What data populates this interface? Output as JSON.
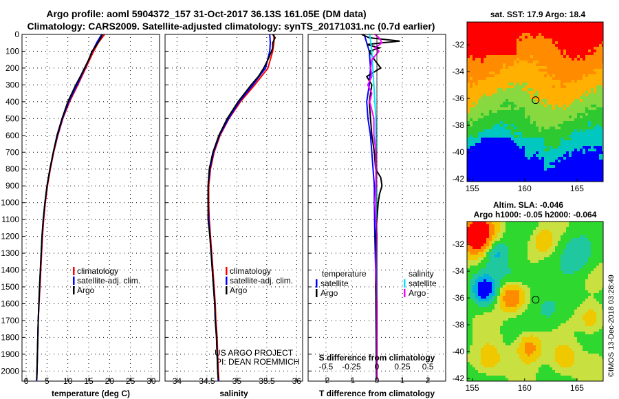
{
  "title": {
    "line1": "Argo profile: aoml 5904372_157 31-Oct-2017 36.13S 161.05E (DM data)",
    "line2": "Climatology: CARS2009. Satellite-adjusted climatology: synTS_20171031.nc (0.7d earlier)"
  },
  "credit": {
    "line1": "US ARGO PROJECT",
    "line2": "PI: DEAN ROEMMICH"
  },
  "watermark": "©IMOS 13-Dec-2018 03:28:49",
  "colors": {
    "climatology": "#ff0000",
    "satellite": "#0000ff",
    "argo": "#000000",
    "sat_salinity": "#00e5ff",
    "argo_salinity": "#ff00ff"
  },
  "chart_data": [
    {
      "id": "temperature",
      "type": "line",
      "xlabel": "temperature (deg C)",
      "xlim": [
        -1,
        32
      ],
      "xticks": [
        0,
        5,
        10,
        15,
        20,
        25,
        30
      ],
      "ylim": [
        2060,
        0
      ],
      "yticks": [
        0,
        100,
        200,
        300,
        400,
        500,
        600,
        700,
        800,
        900,
        1000,
        1100,
        1200,
        1300,
        1400,
        1500,
        1600,
        1700,
        1800,
        1900,
        2000
      ],
      "legend": [
        "climatology",
        "satellite-adj. clim.",
        "Argo"
      ],
      "series": [
        {
          "name": "climatology",
          "depth": [
            0,
            50,
            100,
            200,
            300,
            400,
            500,
            600,
            700,
            800,
            900,
            1000,
            1100,
            1200,
            1300,
            1400,
            1500,
            1600,
            1700,
            1800,
            1900,
            2000,
            2060
          ],
          "values": [
            18.8,
            17.3,
            16.2,
            14.3,
            12.4,
            10.4,
            8.8,
            7.6,
            6.6,
            5.8,
            5.1,
            4.6,
            4.2,
            3.9,
            3.7,
            3.5,
            3.3,
            3.1,
            2.9,
            2.8,
            2.7,
            2.6,
            2.5
          ]
        },
        {
          "name": "satellite-adj. clim.",
          "depth": [
            0,
            50,
            100,
            200,
            300,
            400,
            500,
            600,
            700,
            800,
            900,
            1000,
            1100,
            1200,
            1300,
            1400,
            1500,
            1600,
            1700,
            1800,
            1900,
            2000,
            2060
          ],
          "values": [
            18.1,
            16.9,
            15.9,
            14.1,
            12.2,
            10.2,
            8.7,
            7.5,
            6.5,
            5.7,
            5.0,
            4.5,
            4.1,
            3.8,
            3.6,
            3.4,
            3.2,
            3.05,
            2.9,
            2.8,
            2.7,
            2.6,
            2.5
          ]
        },
        {
          "name": "Argo",
          "depth": [
            0,
            20,
            50,
            80,
            100,
            150,
            200,
            250,
            300,
            400,
            500,
            600,
            700,
            800,
            900,
            1000,
            1100,
            1200,
            1300,
            1400,
            1500,
            1600,
            1700,
            1800,
            1900,
            2000,
            2050
          ],
          "values": [
            18.3,
            17.9,
            17.2,
            16.4,
            15.8,
            15.0,
            14.0,
            13.0,
            11.9,
            10.0,
            8.6,
            7.4,
            6.5,
            5.7,
            5.0,
            4.5,
            4.1,
            3.8,
            3.6,
            3.4,
            3.2,
            3.05,
            2.9,
            2.8,
            2.7,
            2.6,
            2.55
          ]
        }
      ]
    },
    {
      "id": "salinity",
      "type": "line",
      "xlabel": "salinity",
      "xlim": [
        33.8,
        36.1
      ],
      "xticks": [
        34,
        34.5,
        35,
        35.5,
        36
      ],
      "ylim": [
        2060,
        0
      ],
      "legend": [
        "climatology",
        "satellite-adj. clim.",
        "Argo"
      ],
      "series": [
        {
          "name": "climatology",
          "depth": [
            0,
            50,
            100,
            200,
            300,
            400,
            500,
            600,
            700,
            800,
            900,
            1000,
            1100,
            1200,
            1300,
            1400,
            1500,
            1600,
            1700,
            1800,
            1900,
            2000,
            2060
          ],
          "values": [
            35.62,
            35.62,
            35.6,
            35.52,
            35.3,
            35.06,
            34.87,
            34.72,
            34.62,
            34.56,
            34.53,
            34.53,
            34.54,
            34.56,
            34.58,
            34.6,
            34.62,
            34.64,
            34.65,
            34.67,
            34.68,
            34.69,
            34.7
          ]
        },
        {
          "name": "satellite-adj. clim.",
          "depth": [
            0,
            50,
            100,
            200,
            300,
            400,
            500,
            600,
            700,
            800,
            900,
            1000,
            1100,
            1200,
            1300,
            1400,
            1500,
            1600,
            1700,
            1800,
            1900,
            2000,
            2060
          ],
          "values": [
            35.55,
            35.56,
            35.55,
            35.48,
            35.27,
            35.04,
            34.86,
            34.71,
            34.61,
            34.55,
            34.52,
            34.52,
            34.53,
            34.55,
            34.57,
            34.59,
            34.61,
            34.63,
            34.64,
            34.66,
            34.67,
            34.68,
            34.69
          ]
        },
        {
          "name": "Argo",
          "depth": [
            0,
            20,
            50,
            80,
            100,
            150,
            200,
            250,
            300,
            400,
            500,
            600,
            700,
            800,
            900,
            1000,
            1100,
            1200,
            1300,
            1400,
            1500,
            1600,
            1700,
            1800,
            1900,
            2000,
            2050
          ],
          "values": [
            35.6,
            35.64,
            35.6,
            35.6,
            35.58,
            35.52,
            35.45,
            35.36,
            35.24,
            35.02,
            34.84,
            34.7,
            34.6,
            34.54,
            34.52,
            34.52,
            34.52,
            34.55,
            34.57,
            34.59,
            34.61,
            34.63,
            34.64,
            34.66,
            34.67,
            34.68,
            34.69
          ]
        }
      ]
    },
    {
      "id": "difference",
      "type": "line",
      "xlabel": "T difference from climatology",
      "xlabel2": "S difference from climatology",
      "xlim": [
        -2.7,
        2.7
      ],
      "xticks": [
        -2,
        -1,
        0,
        1,
        2
      ],
      "xticks2": [
        -0.5,
        -0.25,
        0,
        0.25,
        0.5
      ],
      "xticks2_labels": [
        "-0.5",
        "-0.25",
        "0",
        "0.25",
        "0.5"
      ],
      "ylim": [
        2060,
        0
      ],
      "legend_left_title": "temperature",
      "legend_right_title": "salinity",
      "legend_left": [
        "satellite",
        "Argo"
      ],
      "legend_right": [
        "satellite",
        "Argo"
      ],
      "series": [
        {
          "name": "T satellite",
          "depth": [
            0,
            50,
            100,
            200,
            300,
            400,
            500,
            600,
            700,
            800,
            900,
            1000,
            1200,
            1400,
            1600,
            1800,
            2000,
            2050
          ],
          "values": [
            -0.5,
            -0.4,
            -0.3,
            -0.25,
            -0.3,
            -0.4,
            -0.35,
            -0.25,
            -0.2,
            -0.15,
            -0.1,
            -0.1,
            -0.08,
            -0.05,
            -0.04,
            -0.03,
            -0.02,
            -0.02
          ]
        },
        {
          "name": "T Argo",
          "depth": [
            0,
            20,
            40,
            50,
            60,
            80,
            100,
            150,
            200,
            250,
            300,
            400,
            500,
            600,
            700,
            800,
            850,
            900,
            950,
            1000,
            1200,
            1400,
            1500,
            1600,
            1800,
            2000,
            2050
          ],
          "values": [
            -0.6,
            -0.3,
            0.9,
            0.2,
            -0.4,
            0.1,
            -0.3,
            -0.1,
            0.15,
            -0.4,
            -0.2,
            -0.3,
            -0.25,
            -0.2,
            -0.1,
            -0.05,
            0.15,
            0.2,
            0.1,
            0.05,
            -0.05,
            -0.03,
            -0.05,
            -0.03,
            -0.02,
            -0.02,
            -0.01
          ]
        },
        {
          "name": "S satellite",
          "depth": [
            0,
            50,
            100,
            200,
            300,
            400,
            500,
            600,
            700,
            800,
            900,
            1000,
            1200,
            1400,
            1600,
            1800,
            2000,
            2050
          ],
          "values": [
            -0.07,
            -0.06,
            -0.05,
            -0.04,
            -0.03,
            -0.02,
            -0.01,
            -0.01,
            -0.01,
            -0.01,
            -0.01,
            -0.01,
            0,
            0,
            0,
            0,
            0,
            0
          ]
        },
        {
          "name": "S Argo",
          "depth": [
            0,
            20,
            50,
            80,
            100,
            150,
            200,
            250,
            300,
            350,
            400,
            500,
            600,
            700,
            800,
            900,
            1000,
            1100,
            1200,
            1400,
            1600,
            1800,
            2000,
            2050
          ],
          "values": [
            -0.02,
            0.02,
            0.05,
            -0.02,
            0.02,
            -0.05,
            -0.06,
            -0.05,
            -0.09,
            -0.05,
            -0.07,
            -0.03,
            -0.03,
            -0.01,
            -0.01,
            -0.01,
            -0.02,
            -0.01,
            0,
            -0.01,
            0,
            0,
            0,
            0
          ]
        }
      ]
    },
    {
      "id": "sst-map",
      "type": "heatmap",
      "title": "sat. SST: 17.9 Argo: 18.4",
      "xticks": [
        155,
        160,
        165
      ],
      "yticks": [
        -32,
        -34,
        -36,
        -38,
        -40,
        -42
      ],
      "xlim": [
        154.5,
        167.5
      ],
      "ylim": [
        -42.2,
        -30.3
      ],
      "marker": [
        161.05,
        -36.13
      ]
    },
    {
      "id": "sla-map",
      "type": "heatmap",
      "title": "Altim. SLA: -0.046",
      "subtitle": "Argo h1000: -0.05 h2000: -0.064",
      "xticks": [
        155,
        160,
        165
      ],
      "yticks": [
        -32,
        -34,
        -36,
        -38,
        -40,
        -42
      ],
      "xlim": [
        154.5,
        167.5
      ],
      "ylim": [
        -42.2,
        -30.3
      ],
      "marker": [
        161.05,
        -36.13
      ]
    }
  ]
}
